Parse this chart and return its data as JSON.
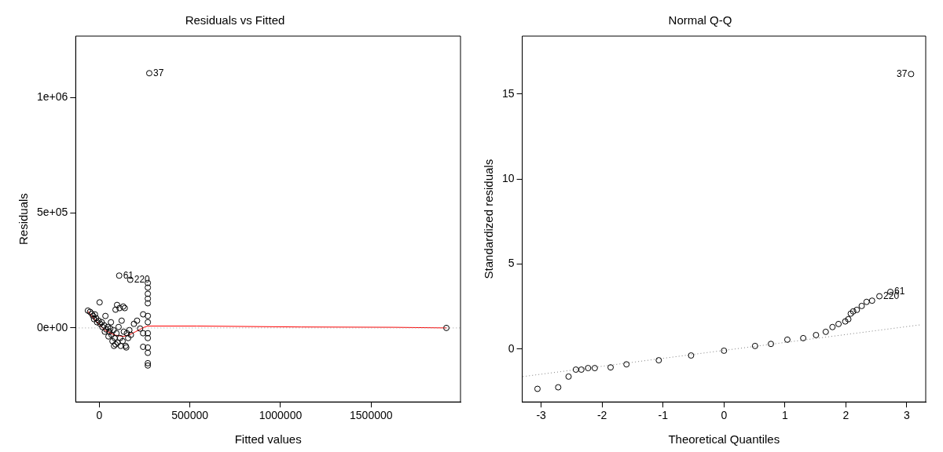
{
  "chart_data": [
    {
      "type": "scatter",
      "title": "Residuals vs Fitted",
      "xlabel": "Fitted values",
      "ylabel": "Residuals",
      "xlim": [
        -130000,
        1993000
      ],
      "ylim": [
        -321000,
        1266000
      ],
      "xticks": [
        0,
        500000,
        1000000,
        1500000
      ],
      "yticks": [
        {
          "value": 0,
          "label": "0e+00"
        },
        {
          "value": 500000,
          "label": "5e+05"
        },
        {
          "value": 1000000,
          "label": "1e+06"
        }
      ],
      "marker": "circle",
      "grid": false,
      "legend": false,
      "series": [
        {
          "color": "#000000",
          "x": [
            276000,
            110000,
            171000,
            1915000,
            268000,
            268000,
            268000,
            268000,
            268000,
            268000,
            268000,
            268000,
            268000,
            268000,
            268000,
            268000,
            268000,
            242000,
            242000,
            242000,
            2000,
            -62700,
            -50900,
            -40700,
            -33900,
            -23700,
            -28800,
            -17000,
            -11900,
            -3400,
            5100,
            13600,
            17000,
            27100,
            33900,
            39000,
            47500,
            55900,
            64400,
            67800,
            78000,
            84800,
            89800,
            94900,
            98300,
            101700,
            106800,
            111900,
            115300,
            118600,
            123700,
            128800,
            132200,
            135600,
            140700,
            145800,
            149100,
            152500,
            159300,
            166100,
            174600,
            191500,
            208500,
            225400,
            30500,
            50900,
            72900,
            89800,
            61000,
            81400
          ],
          "values": [
            1105000,
            227000,
            209000,
            0,
            195000,
            175000,
            148000,
            127000,
            107000,
            52000,
            25000,
            -23000,
            -44000,
            -85000,
            -108000,
            -153000,
            -163000,
            59000,
            -23000,
            -82000,
            111000,
            75100,
            69700,
            61500,
            51900,
            58700,
            38200,
            42300,
            24600,
            31400,
            17800,
            24600,
            4100,
            10900,
            51900,
            -6800,
            4100,
            -16400,
            24600,
            -30100,
            -9600,
            -43700,
            79200,
            -23200,
            99700,
            -64200,
            4100,
            86100,
            -43700,
            -77900,
            31400,
            -57400,
            92900,
            -16400,
            86100,
            -77900,
            -84700,
            -23200,
            -43700,
            -9600,
            -30100,
            17800,
            31400,
            -2700,
            -16400,
            -36900,
            -57400,
            -71000,
            -2700,
            -77900
          ]
        },
        {
          "type": "line",
          "marker": "none",
          "color": "#ff0000",
          "x": [
            -62700,
            -20300,
            30500,
            81400,
            132200,
            166100,
            200000,
            250900,
            267800,
            539000,
            1115300,
            1623800,
            1915400
          ],
          "values": [
            72400,
            31400,
            -9600,
            -30100,
            -36900,
            -30100,
            -16400,
            4100,
            8200,
            8200,
            4100,
            2700,
            0
          ]
        }
      ],
      "ref_lines": [
        {
          "axis": "y",
          "value": 0,
          "color": "#999999",
          "line_style": "dotted"
        }
      ],
      "annotations": [
        {
          "text": "37",
          "x": 276000,
          "y": 1105000
        },
        {
          "text": "61",
          "x": 110000,
          "y": 227000
        },
        {
          "text": "220",
          "x": 171000,
          "y": 209000
        }
      ]
    },
    {
      "type": "scatter",
      "title": "Normal Q-Q",
      "xlabel": "Theoretical Quantiles",
      "ylabel": "Standardized residuals",
      "xlim": [
        -3.31,
        3.31
      ],
      "ylim": [
        -3.1,
        18.4
      ],
      "xticks": [
        -3,
        -2,
        -1,
        0,
        1,
        2,
        3
      ],
      "yticks": [
        0,
        5,
        10,
        15
      ],
      "marker": "circle",
      "grid": false,
      "legend": false,
      "series": [
        {
          "color": "#000000",
          "x": [
            3.07,
            2.73,
            2.55,
            2.43,
            2.34,
            2.26,
            2.18,
            2.12,
            2.08,
            2.04,
            1.99,
            1.88,
            1.78,
            1.67,
            1.51,
            1.3,
            1.04,
            0.77,
            0.51,
            0,
            -0.54,
            -1.07,
            -1.6,
            -1.86,
            -2.12,
            -2.23,
            -2.34,
            -2.43,
            -2.55,
            -2.72,
            -3.06
          ],
          "values": [
            16.17,
            3.37,
            3.11,
            2.85,
            2.78,
            2.54,
            2.31,
            2.22,
            2.09,
            1.76,
            1.63,
            1.48,
            1.3,
            1.02,
            0.83,
            0.65,
            0.56,
            0.31,
            0.19,
            -0.09,
            -0.37,
            -0.65,
            -0.89,
            -1.07,
            -1.11,
            -1.11,
            -1.2,
            -1.2,
            -1.61,
            -2.24,
            -2.33
          ]
        },
        {
          "type": "line",
          "marker": "none",
          "color": "#808080",
          "line_style": "dotted",
          "x": [
            -3.3,
            3.24
          ],
          "values": [
            -1.61,
            1.44
          ]
        }
      ],
      "annotations": [
        {
          "text": "37",
          "x": 3.07,
          "y": 16.17
        },
        {
          "text": "61",
          "x": 2.73,
          "y": 3.37
        },
        {
          "text": "220",
          "x": 2.55,
          "y": 3.11
        }
      ]
    }
  ]
}
